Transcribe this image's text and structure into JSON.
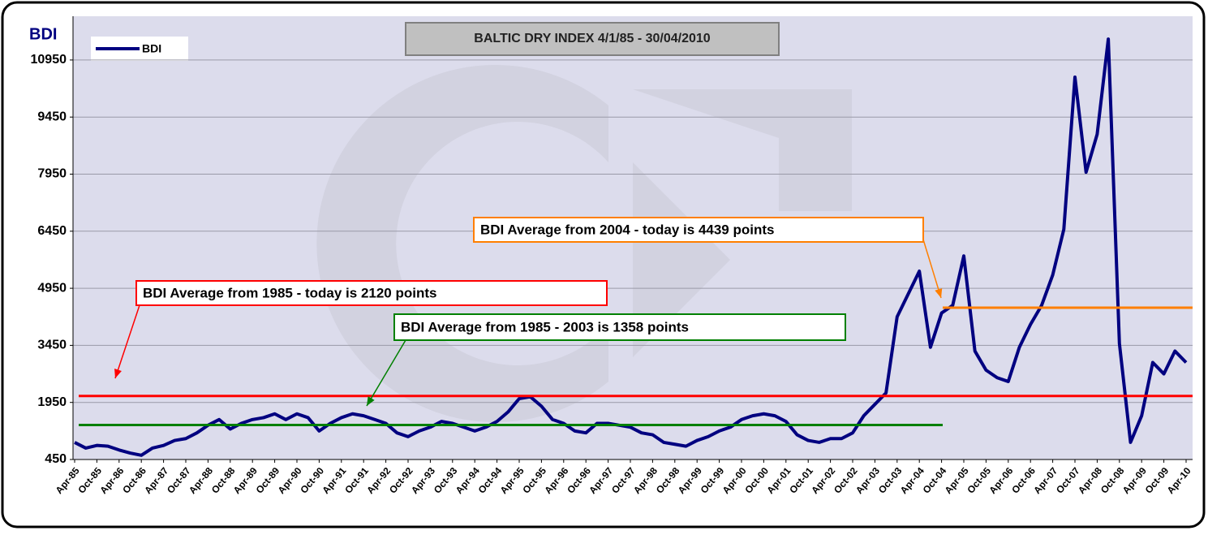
{
  "chart_data": {
    "type": "line",
    "title": "BALTIC DRY INDEX 4/1/85 - 30/04/2010",
    "y_label": "BDI",
    "categories": [
      "Apr-85",
      null,
      "Oct-85",
      null,
      "Apr-86",
      null,
      "Oct-86",
      null,
      "Apr-87",
      null,
      "Oct-87",
      null,
      "Apr-88",
      null,
      "Oct-88",
      null,
      "Apr-89",
      null,
      "Oct-89",
      null,
      "Apr-90",
      null,
      "Oct-90",
      null,
      "Apr-91",
      null,
      "Oct-91",
      null,
      "Apr-92",
      null,
      "Oct-92",
      null,
      "Apr-93",
      null,
      "Oct-93",
      null,
      "Apr-94",
      null,
      "Oct-94",
      null,
      "Apr-95",
      null,
      "Oct-95",
      null,
      "Apr-96",
      null,
      "Oct-96",
      null,
      "Apr-97",
      null,
      "Oct-97",
      null,
      "Apr-98",
      null,
      "Oct-98",
      null,
      "Apr-99",
      null,
      "Oct-99",
      null,
      "Apr-00",
      null,
      "Oct-00",
      null,
      "Apr-01",
      null,
      "Oct-01",
      null,
      "Apr-02",
      null,
      "Oct-02",
      null,
      "Apr-03",
      null,
      "Oct-03",
      null,
      "Apr-04",
      null,
      "Oct-04",
      null,
      "Apr-05",
      null,
      "Oct-05",
      null,
      "Apr-06",
      null,
      "Oct-06",
      null,
      "Apr-07",
      null,
      "Oct-07",
      null,
      "Apr-08",
      null,
      "Oct-08",
      null,
      "Apr-09",
      null,
      "Oct-09",
      null,
      "Apr-10"
    ],
    "series": [
      {
        "name": "BDI",
        "color": "#000080",
        "values": [
          900,
          750,
          820,
          800,
          700,
          620,
          560,
          750,
          820,
          950,
          1000,
          1150,
          1350,
          1500,
          1250,
          1400,
          1500,
          1550,
          1650,
          1500,
          1650,
          1550,
          1200,
          1400,
          1550,
          1650,
          1600,
          1500,
          1400,
          1150,
          1050,
          1200,
          1300,
          1450,
          1400,
          1300,
          1200,
          1300,
          1450,
          1700,
          2050,
          2100,
          1850,
          1500,
          1400,
          1200,
          1150,
          1400,
          1400,
          1350,
          1300,
          1150,
          1100,
          900,
          850,
          800,
          950,
          1050,
          1200,
          1300,
          1500,
          1600,
          1650,
          1600,
          1450,
          1100,
          950,
          900,
          1000,
          1000,
          1150,
          1600,
          1900,
          2200,
          4200,
          4800,
          5400,
          3400,
          4300,
          4500,
          5800,
          3300,
          2800,
          2600,
          2500,
          3400,
          4000,
          4500,
          5300,
          6500,
          10500,
          8000,
          9000,
          11500,
          3500,
          900,
          1600,
          3000,
          2700,
          3300,
          3000
        ]
      }
    ],
    "averages": [
      {
        "label": "BDI Average from 1985 - today  is 2120 points",
        "value": 2120,
        "color": "#ff0000"
      },
      {
        "label": "BDI Average from 1985 - 2003  is 1358 points",
        "value": 1358,
        "color": "#008000"
      },
      {
        "label": "BDI Average from 2004 - today  is 4439 points",
        "value": 4439,
        "color": "#ff7f00"
      }
    ],
    "ylim": [
      450,
      12100
    ],
    "yticks": [
      450,
      1950,
      3450,
      4950,
      6450,
      7950,
      9450,
      10950
    ],
    "grid": true
  }
}
